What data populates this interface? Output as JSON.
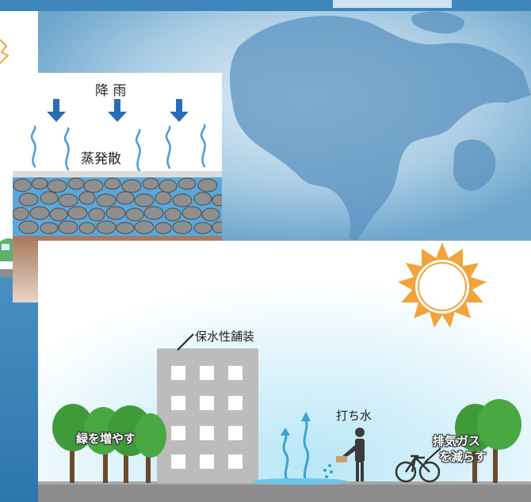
{
  "illustration": {
    "pavement_panel": {
      "rain_label": "降 雨",
      "evaporation_label": "蒸発散"
    },
    "city_panel": {
      "pavement_label": "保水性舗装",
      "greenery_label": "緑を増やす",
      "water_sprinkling_label": "打ち水",
      "exhaust_label_line1": "排気ガス",
      "exhaust_label_line2": "を減らす"
    },
    "icons": [
      "sun-icon",
      "rain-arrow-icon",
      "heat-wave-icon",
      "tree-icon",
      "building-icon",
      "person-icon",
      "bicycle-icon",
      "car-icon",
      "globe-icon"
    ]
  }
}
